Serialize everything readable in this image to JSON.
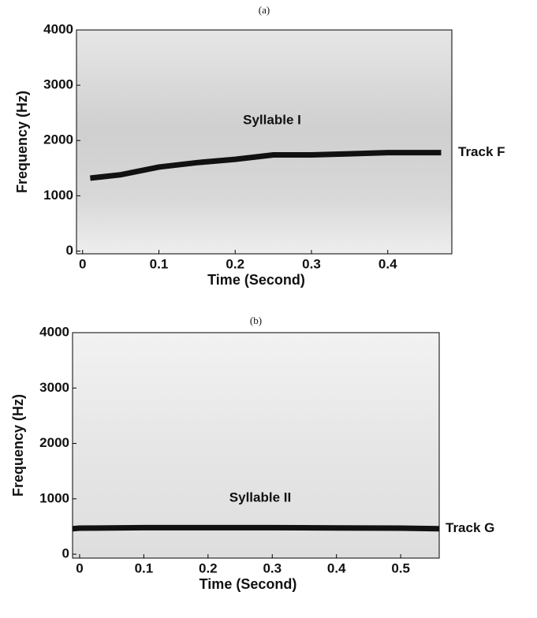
{
  "chart_data": [
    {
      "type": "line",
      "title": "(a)",
      "xlabel": "Time (Second)",
      "ylabel": "Frequency (Hz)",
      "annotation": "Syllable I",
      "x": [
        0.01,
        0.05,
        0.1,
        0.15,
        0.2,
        0.25,
        0.3,
        0.35,
        0.4,
        0.47
      ],
      "series": [
        {
          "name": "Track F",
          "color": "#111111",
          "values": [
            1320,
            1380,
            1520,
            1600,
            1660,
            1740,
            1740,
            1760,
            1780,
            1780
          ]
        }
      ],
      "xlim": [
        -0.008,
        0.484
      ],
      "ylim": [
        -50,
        4000
      ],
      "xticks": [
        0,
        0.1,
        0.2,
        0.3,
        0.4
      ],
      "yticks": [
        0,
        1000,
        2000,
        3000,
        4000
      ]
    },
    {
      "type": "line",
      "title": "(b)",
      "xlabel": "Time (Second)",
      "ylabel": "Frequency (Hz)",
      "annotation": "Syllable II",
      "x": [
        -0.011,
        0.0,
        0.1,
        0.2,
        0.3,
        0.4,
        0.5,
        0.56
      ],
      "series": [
        {
          "name": "Track G",
          "color": "#111111",
          "values": [
            460,
            470,
            480,
            480,
            480,
            475,
            470,
            460
          ]
        }
      ],
      "xlim": [
        -0.011,
        0.56
      ],
      "ylim": [
        -70,
        4000
      ],
      "xticks": [
        0,
        0.1,
        0.2,
        0.3,
        0.4,
        0.5
      ],
      "yticks": [
        0,
        1000,
        2000,
        3000,
        4000
      ]
    }
  ]
}
